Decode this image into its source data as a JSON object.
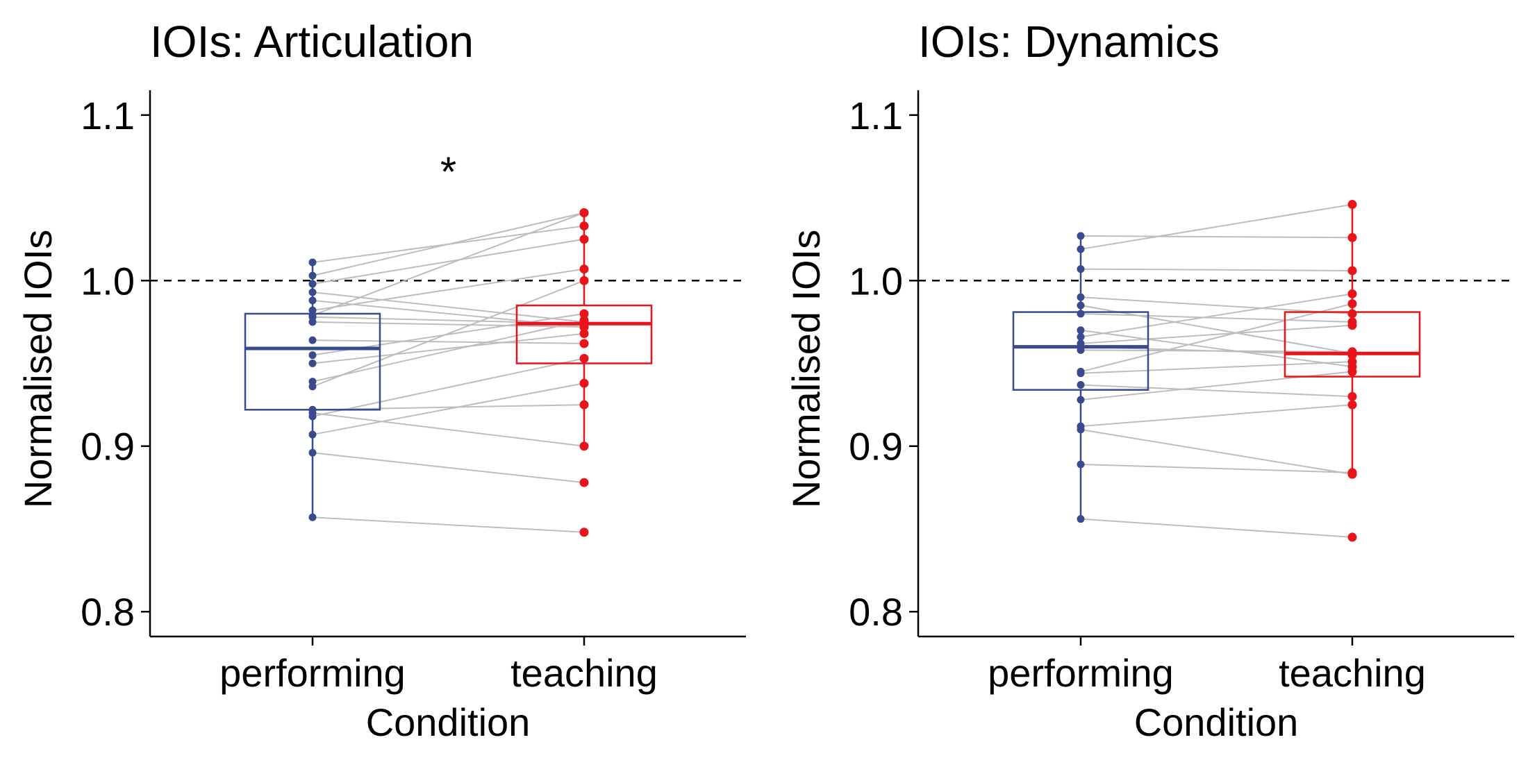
{
  "chart_data": [
    {
      "type": "boxplot",
      "title": "IOIs: Articulation",
      "xlabel": "Condition",
      "ylabel": "Normalised IOIs",
      "categories": [
        "performing",
        "teaching"
      ],
      "ylim": [
        0.785,
        1.115
      ],
      "yticks": [
        "0.8",
        "0.9",
        "1.0",
        "1.1"
      ],
      "reference_line": 1.0,
      "annotation": "*",
      "colors": {
        "performing": "#3a4a8f",
        "teaching": "#e8141a",
        "pair_line": "#bdbdbd",
        "reference": "#000000"
      },
      "boxes": [
        {
          "name": "performing",
          "q1": 0.922,
          "median": 0.959,
          "q3": 0.98,
          "whisker_low": 0.857,
          "whisker_high": 1.011
        },
        {
          "name": "teaching",
          "q1": 0.95,
          "median": 0.974,
          "q3": 0.985,
          "whisker_low": 0.9,
          "whisker_high": 1.041
        }
      ],
      "pairs": [
        [
          1.011,
          1.033
        ],
        [
          1.003,
          1.041
        ],
        [
          0.998,
          1.025
        ],
        [
          0.993,
          0.975
        ],
        [
          0.988,
          0.972
        ],
        [
          0.982,
          1.007
        ],
        [
          0.979,
          1.041
        ],
        [
          0.978,
          0.974
        ],
        [
          0.975,
          0.972
        ],
        [
          0.964,
          0.962
        ],
        [
          0.955,
          0.98
        ],
        [
          0.95,
          0.968
        ],
        [
          0.939,
          0.976
        ],
        [
          0.936,
          1.0
        ],
        [
          0.922,
          0.925
        ],
        [
          0.92,
          0.9
        ],
        [
          0.918,
          0.953
        ],
        [
          0.907,
          0.938
        ],
        [
          0.896,
          0.878
        ],
        [
          0.857,
          0.848
        ]
      ]
    },
    {
      "type": "boxplot",
      "title": "IOIs: Dynamics",
      "xlabel": "Condition",
      "ylabel": "Normalised IOIs",
      "categories": [
        "performing",
        "teaching"
      ],
      "ylim": [
        0.785,
        1.115
      ],
      "yticks": [
        "0.8",
        "0.9",
        "1.0",
        "1.1"
      ],
      "reference_line": 1.0,
      "annotation": "",
      "colors": {
        "performing": "#3a4a8f",
        "teaching": "#e8141a",
        "pair_line": "#bdbdbd",
        "reference": "#000000"
      },
      "boxes": [
        {
          "name": "performing",
          "q1": 0.934,
          "median": 0.96,
          "q3": 0.981,
          "whisker_low": 0.856,
          "whisker_high": 1.027
        },
        {
          "name": "teaching",
          "q1": 0.942,
          "median": 0.956,
          "q3": 0.981,
          "whisker_low": 0.882,
          "whisker_high": 1.046
        }
      ],
      "pairs": [
        [
          1.027,
          1.026
        ],
        [
          1.019,
          1.046
        ],
        [
          1.007,
          1.006
        ],
        [
          0.99,
          0.98
        ],
        [
          0.985,
          0.956
        ],
        [
          0.98,
          0.975
        ],
        [
          0.97,
          0.948
        ],
        [
          0.966,
          0.992
        ],
        [
          0.962,
          0.973
        ],
        [
          0.96,
          0.955
        ],
        [
          0.958,
          0.957
        ],
        [
          0.945,
          0.986
        ],
        [
          0.944,
          0.951
        ],
        [
          0.937,
          0.93
        ],
        [
          0.928,
          0.945
        ],
        [
          0.912,
          0.925
        ],
        [
          0.91,
          0.883
        ],
        [
          0.889,
          0.884
        ],
        [
          0.856,
          0.845
        ]
      ]
    }
  ]
}
